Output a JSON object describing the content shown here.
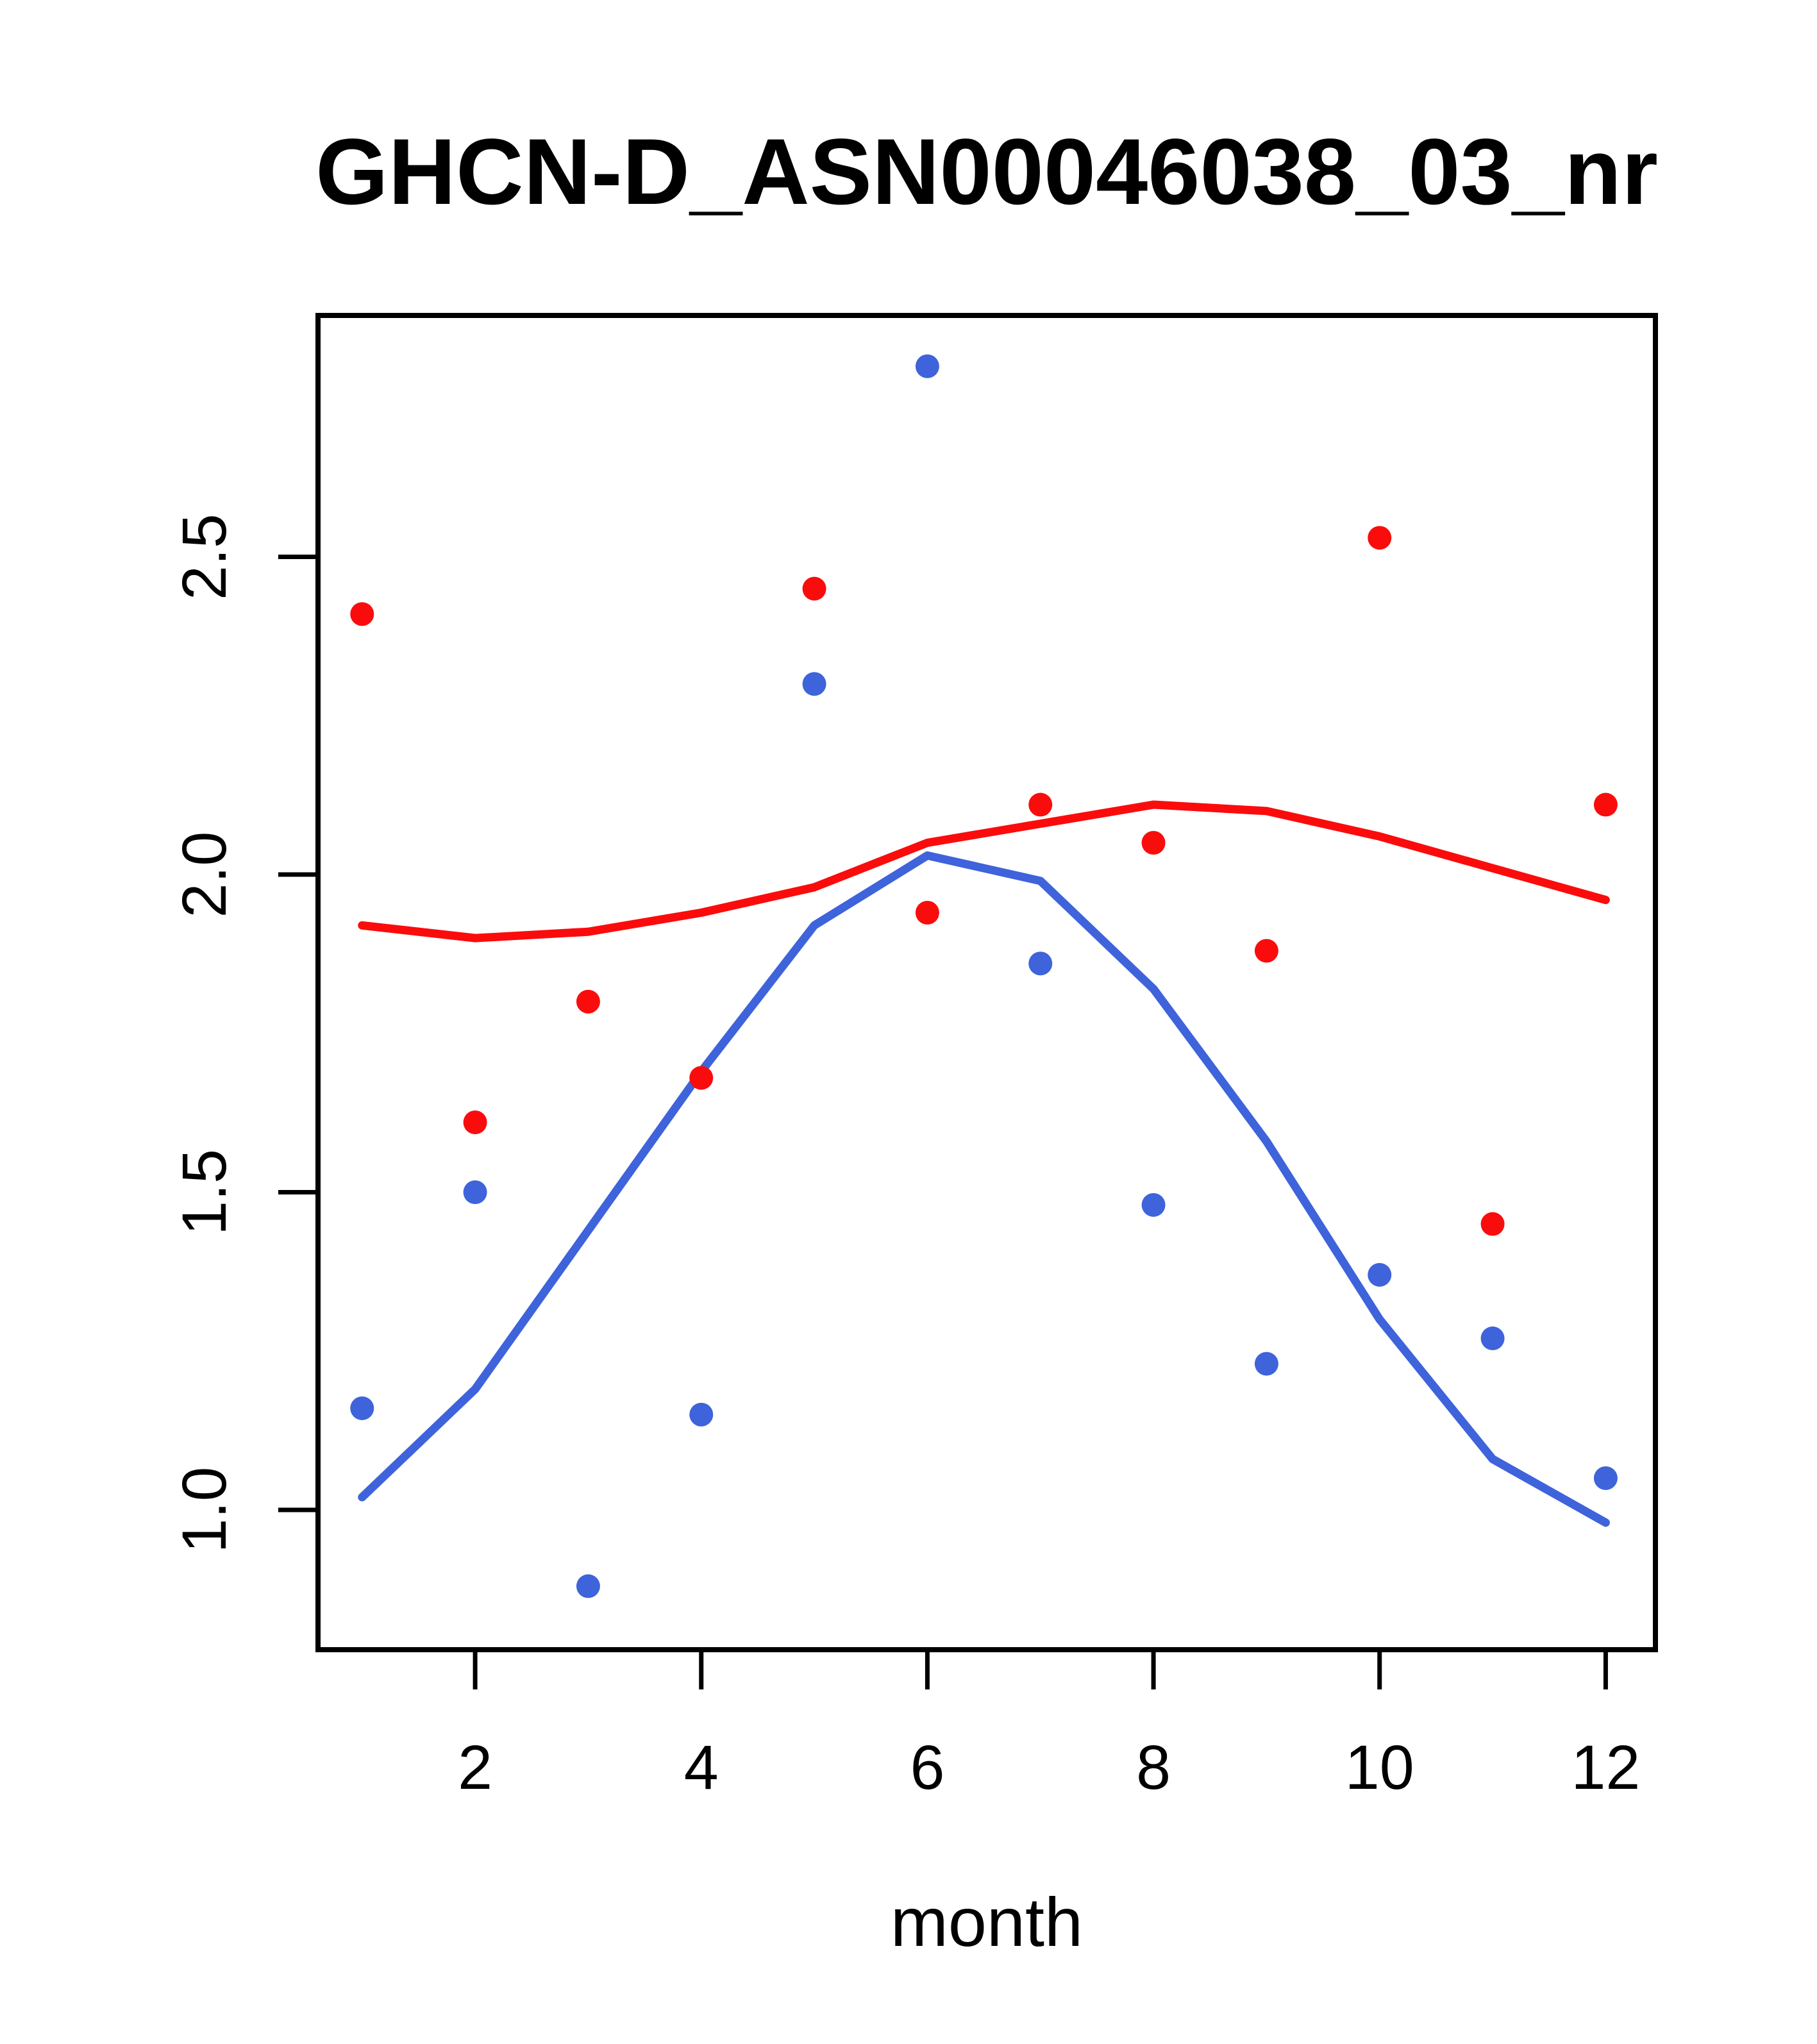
{
  "figure": {
    "background": "#ffffff",
    "box_color": "#000000"
  },
  "chart_data": {
    "type": "scatter",
    "title": "GHCN-D_ASN00046038_03_nr",
    "xlabel": "month",
    "ylabel": "",
    "grid": false,
    "legend": "none",
    "xlim": [
      0.61,
      12.44
    ],
    "ylim": [
      0.78,
      2.88
    ],
    "x_ticks": [
      2,
      4,
      6,
      8,
      10,
      12
    ],
    "y_ticks": [
      "1.0",
      "1.5",
      "2.0",
      "2.5"
    ],
    "x": [
      1,
      2,
      3,
      4,
      5,
      6,
      7,
      8,
      9,
      10,
      11,
      12
    ],
    "series": [
      {
        "name": "red-points",
        "kind": "points",
        "color": "#FB0C0C",
        "values": [
          2.41,
          1.61,
          1.8,
          1.68,
          2.45,
          1.94,
          2.11,
          2.05,
          1.88,
          2.53,
          1.45,
          2.11
        ]
      },
      {
        "name": "blue-points",
        "kind": "points",
        "color": "#3E63DB",
        "values": [
          1.16,
          1.5,
          0.88,
          1.15,
          2.3,
          2.8,
          1.86,
          1.48,
          1.23,
          1.37,
          1.27,
          1.05
        ]
      },
      {
        "name": "red-trend-line",
        "kind": "line",
        "color": "#FB0C0C",
        "values": [
          1.92,
          1.9,
          1.91,
          1.94,
          1.98,
          2.05,
          2.08,
          2.11,
          2.1,
          2.06,
          2.01,
          1.96
        ]
      },
      {
        "name": "blue-trend-line",
        "kind": "line",
        "color": "#3E63DB",
        "values": [
          1.02,
          1.19,
          1.44,
          1.69,
          1.92,
          2.03,
          1.99,
          1.82,
          1.58,
          1.3,
          1.08,
          0.98
        ]
      }
    ]
  }
}
